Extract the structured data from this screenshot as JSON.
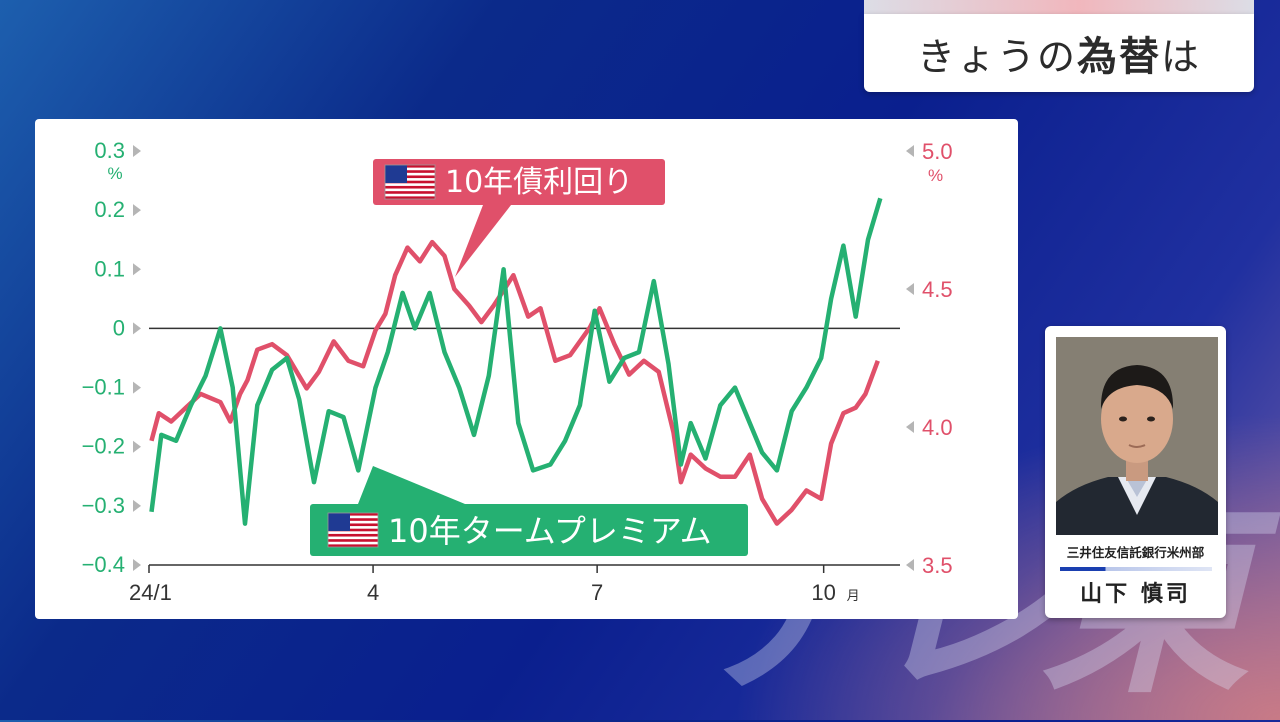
{
  "header": {
    "title_prefix": "きょうの",
    "title_bold": "為替",
    "title_suffix": "は"
  },
  "watermark": "テレ東",
  "profile": {
    "organization": "三井住友信託銀行米州部",
    "name": "山下 慎司"
  },
  "chart_data": {
    "type": "line",
    "x_tick_labels": [
      "24/1",
      "4",
      "7",
      "10"
    ],
    "x_month_unit": "月",
    "left_axis": {
      "ticks": [
        "0.3",
        "0.2",
        "0.1",
        "0",
        "−0.1",
        "−0.2",
        "−0.3",
        "−0.4"
      ],
      "unit": "%",
      "range": [
        -0.4,
        0.3
      ]
    },
    "right_axis": {
      "ticks": [
        "5.0",
        "4.5",
        "4.0",
        "3.5"
      ],
      "unit": "%",
      "range": [
        3.5,
        5.0
      ]
    },
    "series": [
      {
        "name": "10年債利回り",
        "axis": "right",
        "color": "#e0506a",
        "label_icon": "us-flag-icon",
        "points": [
          [
            "2024-01-02",
            3.95
          ],
          [
            "2024-01-05",
            4.05
          ],
          [
            "2024-01-10",
            4.02
          ],
          [
            "2024-01-16",
            4.07
          ],
          [
            "2024-01-22",
            4.12
          ],
          [
            "2024-01-30",
            4.09
          ],
          [
            "2024-02-03",
            4.02
          ],
          [
            "2024-02-07",
            4.12
          ],
          [
            "2024-02-10",
            4.17
          ],
          [
            "2024-02-14",
            4.28
          ],
          [
            "2024-02-20",
            4.3
          ],
          [
            "2024-02-26",
            4.26
          ],
          [
            "2024-03-05",
            4.14
          ],
          [
            "2024-03-10",
            4.2
          ],
          [
            "2024-03-16",
            4.31
          ],
          [
            "2024-03-22",
            4.24
          ],
          [
            "2024-03-28",
            4.22
          ],
          [
            "2024-04-02",
            4.35
          ],
          [
            "2024-04-06",
            4.41
          ],
          [
            "2024-04-10",
            4.55
          ],
          [
            "2024-04-15",
            4.65
          ],
          [
            "2024-04-20",
            4.6
          ],
          [
            "2024-04-25",
            4.67
          ],
          [
            "2024-04-30",
            4.62
          ],
          [
            "2024-05-04",
            4.5
          ],
          [
            "2024-05-10",
            4.44
          ],
          [
            "2024-05-15",
            4.38
          ],
          [
            "2024-05-20",
            4.44
          ],
          [
            "2024-05-28",
            4.55
          ],
          [
            "2024-06-03",
            4.4
          ],
          [
            "2024-06-08",
            4.43
          ],
          [
            "2024-06-14",
            4.24
          ],
          [
            "2024-06-20",
            4.26
          ],
          [
            "2024-06-28",
            4.36
          ],
          [
            "2024-07-02",
            4.43
          ],
          [
            "2024-07-08",
            4.3
          ],
          [
            "2024-07-14",
            4.19
          ],
          [
            "2024-07-20",
            4.24
          ],
          [
            "2024-07-26",
            4.2
          ],
          [
            "2024-08-01",
            3.98
          ],
          [
            "2024-08-04",
            3.8
          ],
          [
            "2024-08-08",
            3.9
          ],
          [
            "2024-08-14",
            3.85
          ],
          [
            "2024-08-20",
            3.82
          ],
          [
            "2024-08-26",
            3.82
          ],
          [
            "2024-09-01",
            3.9
          ],
          [
            "2024-09-06",
            3.74
          ],
          [
            "2024-09-12",
            3.65
          ],
          [
            "2024-09-18",
            3.7
          ],
          [
            "2024-09-24",
            3.77
          ],
          [
            "2024-09-30",
            3.74
          ],
          [
            "2024-10-04",
            3.94
          ],
          [
            "2024-10-09",
            4.05
          ],
          [
            "2024-10-14",
            4.07
          ],
          [
            "2024-10-18",
            4.12
          ],
          [
            "2024-10-23",
            4.24
          ]
        ]
      },
      {
        "name": "10年タームプレミアム",
        "axis": "left",
        "color": "#25b072",
        "label_icon": "us-flag-icon",
        "points": [
          [
            "2024-01-02",
            -0.31
          ],
          [
            "2024-01-06",
            -0.18
          ],
          [
            "2024-01-12",
            -0.19
          ],
          [
            "2024-01-18",
            -0.13
          ],
          [
            "2024-01-24",
            -0.08
          ],
          [
            "2024-01-30",
            0.0
          ],
          [
            "2024-02-04",
            -0.1
          ],
          [
            "2024-02-09",
            -0.33
          ],
          [
            "2024-02-14",
            -0.13
          ],
          [
            "2024-02-20",
            -0.07
          ],
          [
            "2024-02-26",
            -0.05
          ],
          [
            "2024-03-02",
            -0.12
          ],
          [
            "2024-03-08",
            -0.26
          ],
          [
            "2024-03-14",
            -0.14
          ],
          [
            "2024-03-20",
            -0.15
          ],
          [
            "2024-03-26",
            -0.24
          ],
          [
            "2024-04-02",
            -0.1
          ],
          [
            "2024-04-07",
            -0.04
          ],
          [
            "2024-04-13",
            0.06
          ],
          [
            "2024-04-18",
            0.0
          ],
          [
            "2024-04-24",
            0.06
          ],
          [
            "2024-04-30",
            -0.04
          ],
          [
            "2024-05-06",
            -0.1
          ],
          [
            "2024-05-12",
            -0.18
          ],
          [
            "2024-05-18",
            -0.08
          ],
          [
            "2024-05-24",
            0.1
          ],
          [
            "2024-05-30",
            -0.16
          ],
          [
            "2024-06-05",
            -0.24
          ],
          [
            "2024-06-12",
            -0.23
          ],
          [
            "2024-06-18",
            -0.19
          ],
          [
            "2024-06-24",
            -0.13
          ],
          [
            "2024-06-30",
            0.03
          ],
          [
            "2024-07-06",
            -0.09
          ],
          [
            "2024-07-12",
            -0.05
          ],
          [
            "2024-07-18",
            -0.04
          ],
          [
            "2024-07-24",
            0.08
          ],
          [
            "2024-07-30",
            -0.06
          ],
          [
            "2024-08-04",
            -0.23
          ],
          [
            "2024-08-08",
            -0.16
          ],
          [
            "2024-08-14",
            -0.22
          ],
          [
            "2024-08-20",
            -0.13
          ],
          [
            "2024-08-26",
            -0.1
          ],
          [
            "2024-09-01",
            -0.16
          ],
          [
            "2024-09-06",
            -0.21
          ],
          [
            "2024-09-12",
            -0.24
          ],
          [
            "2024-09-18",
            -0.14
          ],
          [
            "2024-09-24",
            -0.1
          ],
          [
            "2024-09-30",
            -0.05
          ],
          [
            "2024-10-04",
            0.05
          ],
          [
            "2024-10-09",
            0.14
          ],
          [
            "2024-10-14",
            0.02
          ],
          [
            "2024-10-19",
            0.15
          ],
          [
            "2024-10-24",
            0.22
          ]
        ]
      }
    ],
    "zero_line": true
  },
  "colors": {
    "panel_bg": "#ffffff",
    "title_text": "#2b2b2b"
  }
}
